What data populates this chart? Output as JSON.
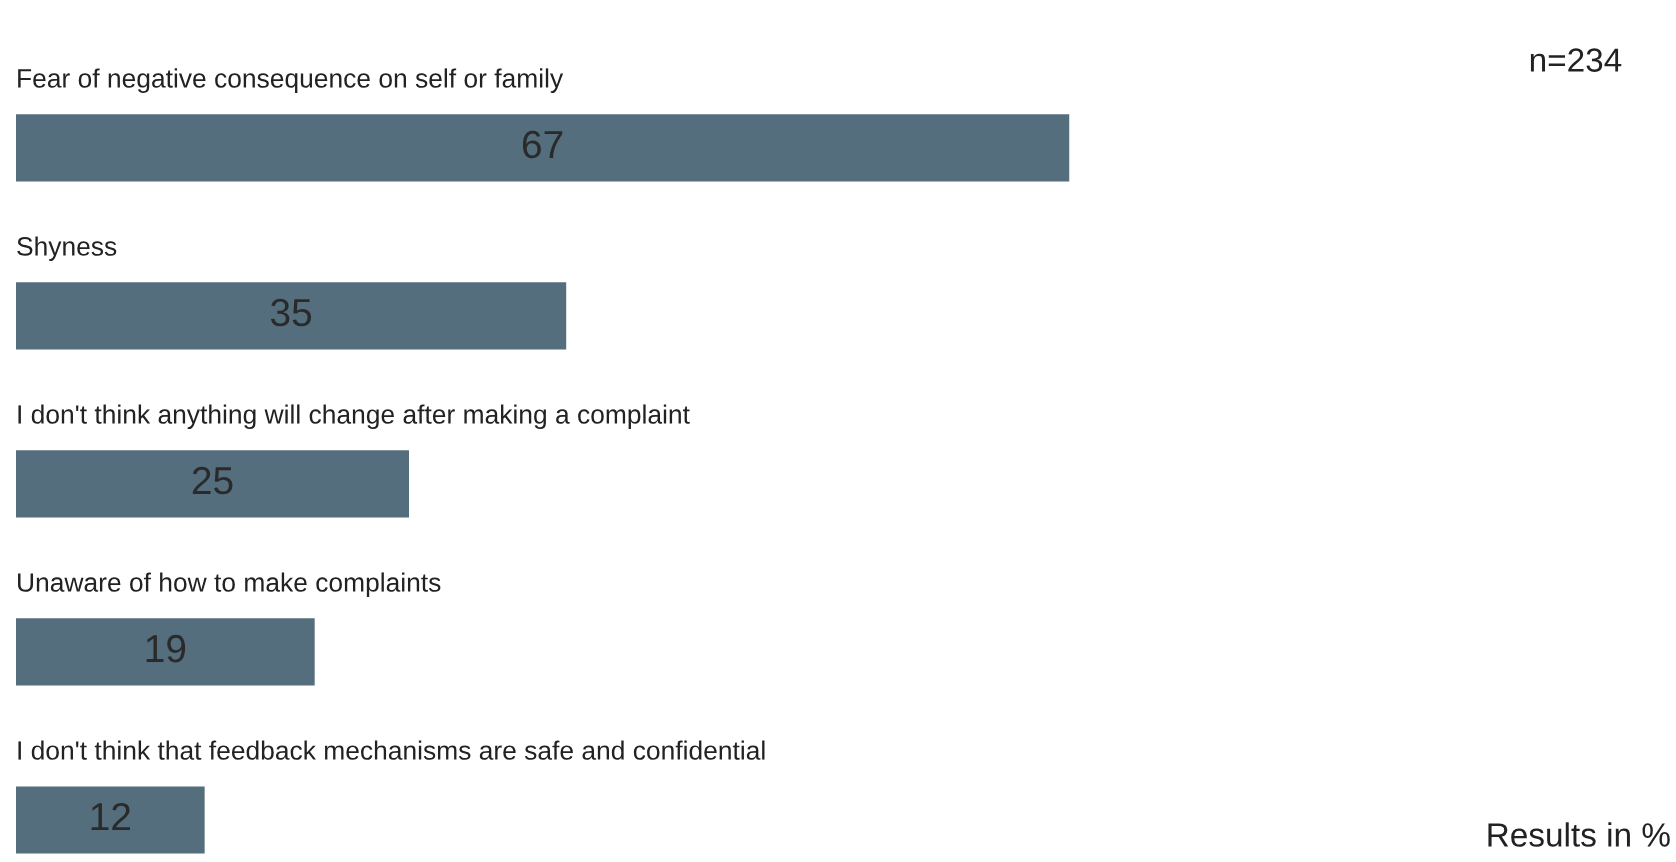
{
  "chart_data": {
    "type": "bar",
    "orientation": "horizontal",
    "data_labels": true,
    "categories": [
      "Fear of negative consequence on self or family",
      "Shyness",
      "I don't think anything will change after making a complaint",
      "Unaware of how to make complaints",
      "I don't think that feedback mechanisms are safe and confidential"
    ],
    "values": [
      67,
      35,
      25,
      19,
      12
    ],
    "color": "#546e7d",
    "annotations": [
      "n=234",
      "Results in %"
    ]
  }
}
